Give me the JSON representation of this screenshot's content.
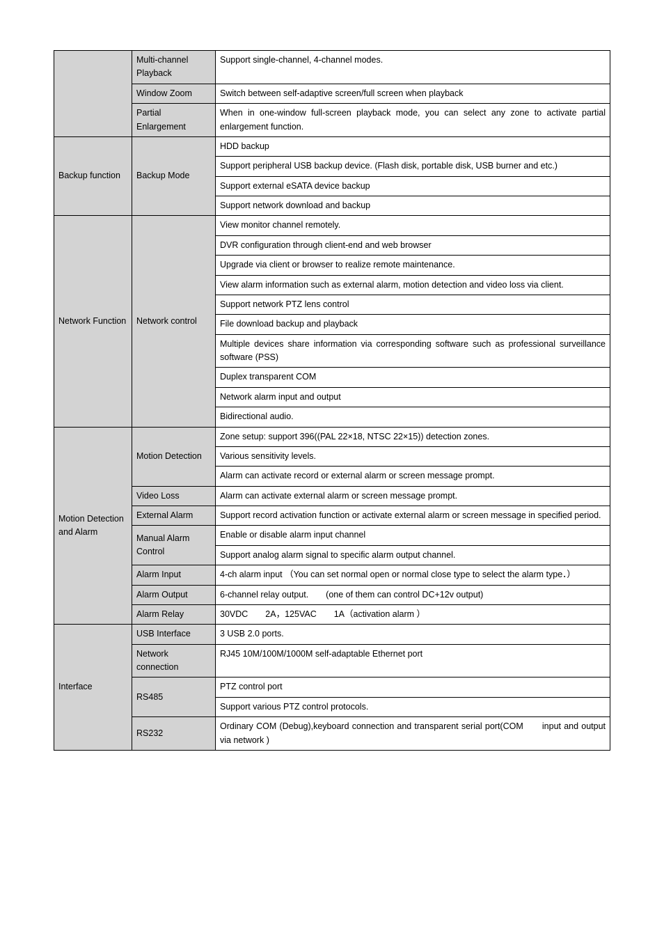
{
  "rows": [
    {
      "cat": "",
      "catRowspan": 4,
      "sub": "Multi-channel Playback",
      "subRowspan": 1,
      "desc": "Support single-channel, 4-channel modes."
    },
    {
      "sub": "Window Zoom",
      "subRowspan": 1,
      "desc": "Switch between self-adaptive screen/full screen when playback"
    },
    {
      "sub": "Partial Enlargement",
      "subRowspan": 2,
      "desc": "When in one-window full-screen playback mode, you can select any zone to activate partial enlargement function."
    },
    {
      "desc": "zone to activate partial enlargement function.",
      "skip": true
    },
    {
      "cat": "Backup function",
      "catRowspan": 4,
      "sub": "Backup Mode",
      "subRowspan": 4,
      "desc": "HDD backup"
    },
    {
      "desc": "Support peripheral USB backup device. (Flash disk, portable disk, USB burner and etc.)"
    },
    {
      "desc": "Support external eSATA device backup"
    },
    {
      "desc": "Support network download and backup"
    },
    {
      "cat": "Network Function",
      "catRowspan": 10,
      "sub": "Network control",
      "subRowspan": 10,
      "desc": "View monitor channel remotely."
    },
    {
      "desc": "DVR configuration through client-end and web browser"
    },
    {
      "desc": "Upgrade via client or browser to realize remote maintenance."
    },
    {
      "desc": "View alarm information such as external alarm, motion detection and video loss via client."
    },
    {
      "desc": "Support network PTZ lens control"
    },
    {
      "desc": "File download backup and playback"
    },
    {
      "desc": "Multiple devices share information via corresponding software such as professional surveillance software (PSS)"
    },
    {
      "desc": "Duplex transparent COM"
    },
    {
      "desc": "Network alarm input and output"
    },
    {
      "desc": "Bidirectional audio."
    },
    {
      "cat": "Motion Detection and Alarm",
      "catRowspan": 9,
      "sub": "Motion Detection",
      "subRowspan": 3,
      "desc": "Zone setup: support 396((PAL 22×18, NTSC 22×15)) detection zones."
    },
    {
      "desc": "Various sensitivity levels."
    },
    {
      "desc": "Alarm can activate record or external alarm or screen message prompt."
    },
    {
      "sub": "Video Loss",
      "subRowspan": 1,
      "desc": "Alarm can activate external alarm or screen message prompt."
    },
    {
      "sub": "External Alarm",
      "subRowspan": 1,
      "desc": "Support record activation function or activate external alarm or screen message in specified period."
    },
    {
      "sub": "Manual Alarm Control",
      "subRowspan": 2,
      "desc": "Enable or disable alarm input channel"
    },
    {
      "desc": "Support analog alarm signal to specific alarm output channel."
    },
    {
      "sub": "Alarm Input",
      "subRowspan": 1,
      "desc": "4-ch alarm input （You can set normal open or normal close type to select the alarm type．）"
    },
    {
      "sub": "Alarm Output",
      "subRowspan": 1,
      "desc": "6-channel relay output.　　(one of them can control DC+12v output)"
    },
    {
      "sub": "Alarm Relay",
      "subRowspan": 1,
      "desc": "30VDC　　2A，125VAC　　1A（activation alarm ）",
      "catExtend": true
    },
    {
      "cat": "Interface",
      "catRowspan": 4,
      "sub": "USB Interface",
      "subRowspan": 1,
      "desc": "3 USB 2.0 ports."
    },
    {
      "sub": "Network connection",
      "subRowspan": 1,
      "desc": "RJ45 10M/100M/1000M self-adaptable Ethernet port"
    },
    {
      "sub": "RS485",
      "subRowspan": 1,
      "desc": "PTZ control port\nSupport various PTZ control protocols."
    },
    {
      "sub": "RS232",
      "subRowspan": 1,
      "desc": "Ordinary COM (Debug),keyboard connection and transparent serial port(COM　　input and output via network )"
    }
  ]
}
